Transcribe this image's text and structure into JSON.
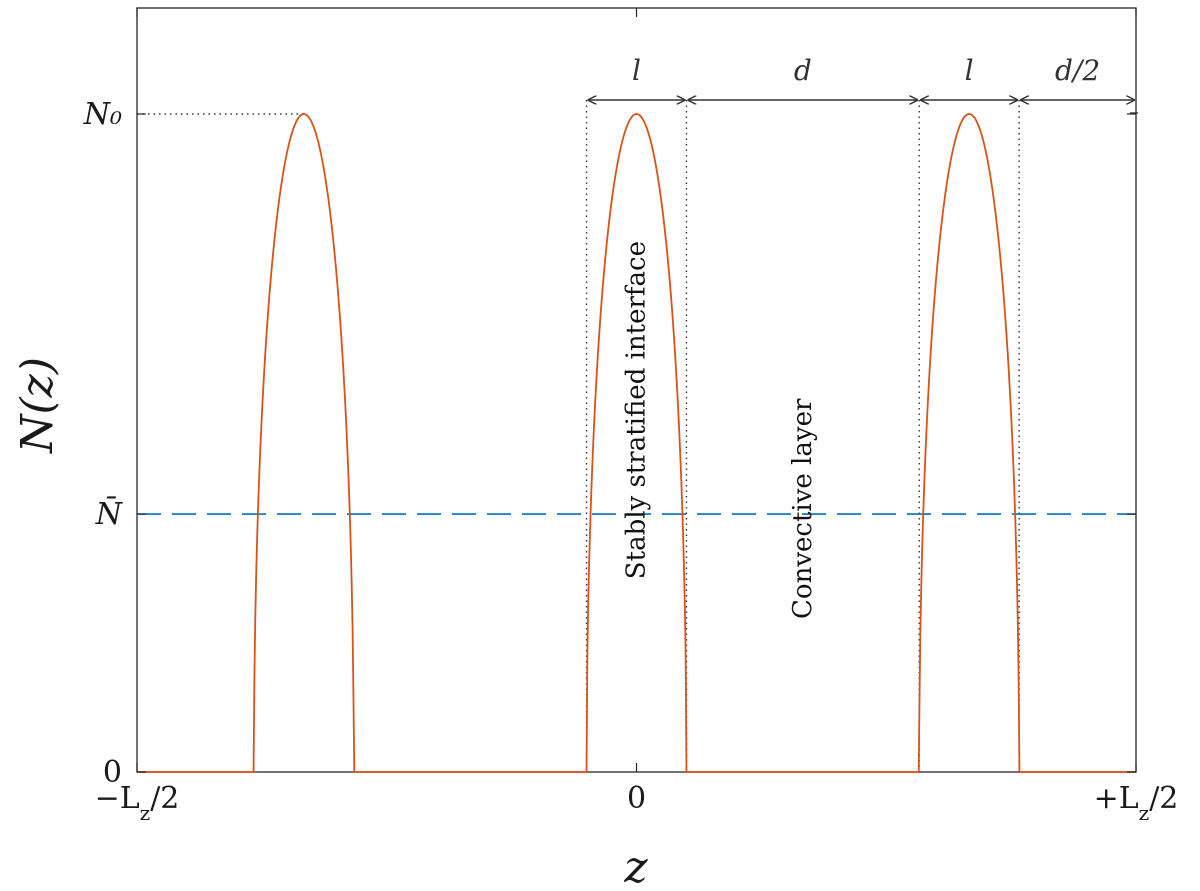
{
  "chart_data": {
    "type": "line",
    "title": "",
    "xlabel": "z",
    "ylabel": "N(z)",
    "xlim": [
      -1.0,
      1.0
    ],
    "ylim": [
      0,
      1.0
    ],
    "x_ticks": [
      {
        "value": -1.0,
        "label": "−L_z/2"
      },
      {
        "value": 0.0,
        "label": "0"
      },
      {
        "value": 1.0,
        "label": "+L_z/2"
      }
    ],
    "y_ticks": [
      {
        "value": 0.0,
        "label": "0"
      },
      {
        "value": 0.392,
        "label": "N̄"
      },
      {
        "value": 1.0,
        "label": "N₀"
      }
    ],
    "series": [
      {
        "color": "#d95319",
        "style": "solid",
        "peaks": [
          {
            "center": -0.666,
            "half_width": 0.1
          },
          {
            "center": 0.0,
            "half_width": 0.1
          },
          {
            "center": 0.666,
            "half_width": 0.1
          }
        ],
        "peak_value": 1.0
      },
      {
        "color": "#0072bd",
        "style": "dashed",
        "value": 0.392
      }
    ],
    "guides": {
      "n0_dotted_from_x": -1.0,
      "vertical_dotted_x": [
        -0.1,
        0.1,
        0.566,
        0.766
      ]
    },
    "dimensions": [
      {
        "label": "l",
        "from": -0.1,
        "to": 0.1
      },
      {
        "label": "d",
        "from": 0.1,
        "to": 0.566
      },
      {
        "label": "l",
        "from": 0.566,
        "to": 0.766
      },
      {
        "label": "d/2",
        "from": 0.766,
        "to": 1.0
      }
    ],
    "annotations": [
      {
        "text": "Stably stratified interface",
        "x": 0.0,
        "y": 0.55
      },
      {
        "text": "Convective layer",
        "x": 0.333,
        "y": 0.4
      }
    ],
    "grid": false,
    "legend": "none"
  }
}
